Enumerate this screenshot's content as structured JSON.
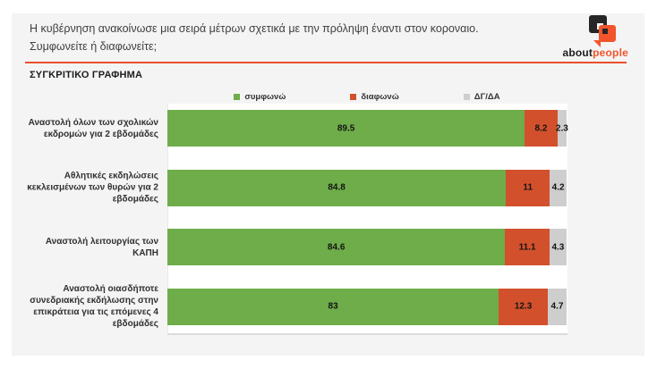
{
  "header": {
    "title_line1": "Η κυβέρνηση ανακοίνωσε μια σειρά μέτρων σχετικά με την πρόληψη έναντι στον κοροναιο.",
    "title_line2": "Συμφωνείτε ή διαφωνείτε;",
    "logo": {
      "about": "about",
      "people": "people"
    }
  },
  "section_title": "ΣΥΓΚΡΙΤΙΚΟ ΓΡΑΦΗΜΑ",
  "colors": {
    "agree_green": "#6ead4a",
    "disagree_red": "#d2512c",
    "neutral_gray": "#cecece",
    "header_rule": "#e8502c",
    "logo_orange": "#f2552c",
    "panel_background": "#f4f4f4"
  },
  "chart_data": {
    "type": "bar",
    "orientation": "horizontal",
    "stacked": true,
    "unit": "percent",
    "xlim": [
      0,
      100
    ],
    "legend_position": "top-center",
    "value_labels": "inside-center",
    "categories": [
      "Αναστολή όλων των σχολικών εκδρομών για 2 εβδομάδες",
      "Αθλητικές εκδηλώσεις κεκλεισμένων των θυρών για 2 εβδομάδες",
      "Αναστολή λειτουργίας των ΚΑΠΗ",
      "Αναστολή οιασδήποτε συνεδριακής εκδήλωσης στην επικράτεια για τις επόμενες 4 εβδομάδες"
    ],
    "series": [
      {
        "name": "συμφωνώ",
        "color": "#6ead4a",
        "values": [
          89.5,
          84.8,
          84.6,
          83
        ]
      },
      {
        "name": "διαφωνώ",
        "color": "#d2512c",
        "values": [
          8.2,
          11,
          11.1,
          12.3
        ]
      },
      {
        "name": "ΔΓ/ΔΑ",
        "color": "#cecece",
        "values": [
          2.3,
          4.2,
          4.3,
          4.7
        ]
      }
    ]
  }
}
